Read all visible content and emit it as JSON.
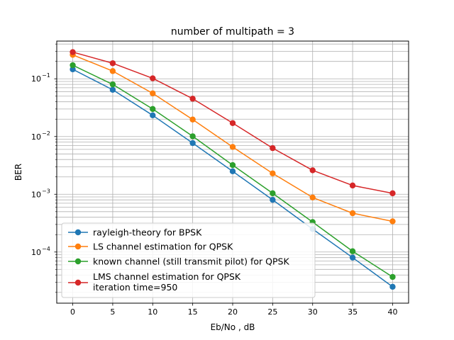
{
  "chart_data": {
    "type": "line",
    "title": "number of multipath = 3",
    "xlabel": "Eb/No , dB",
    "ylabel": "BER",
    "xlim": [
      -2,
      42
    ],
    "ylim": [
      1.3e-05,
      0.45
    ],
    "yscale": "log",
    "grid": true,
    "legend_position": "lower-left",
    "x_ticks": [
      0,
      5,
      10,
      15,
      20,
      25,
      30,
      35,
      40
    ],
    "x_tick_labels": [
      "0",
      "5",
      "10",
      "15",
      "20",
      "25",
      "30",
      "35",
      "40"
    ],
    "y_ticks": [
      0.0001,
      0.001,
      0.01,
      0.1
    ],
    "y_tick_bases": [
      "10",
      "10",
      "10",
      "10"
    ],
    "y_tick_exps": [
      "−4",
      "−3",
      "−2",
      "−1"
    ],
    "x": [
      0,
      5,
      10,
      15,
      20,
      25,
      30,
      35,
      40
    ],
    "series": [
      {
        "name": "rayleigh-theory for BPSK",
        "color": "#1f77b4",
        "values": [
          0.146,
          0.0645,
          0.0233,
          0.0077,
          0.0025,
          0.0008,
          0.00025,
          8e-05,
          2.5e-05
        ]
      },
      {
        "name": "LS channel estimation for QPSK",
        "color": "#ff7f0e",
        "values": [
          0.26,
          0.136,
          0.056,
          0.0197,
          0.0066,
          0.0023,
          0.00088,
          0.00047,
          0.00034
        ]
      },
      {
        "name": "known channel (still transmit pilot) for QPSK",
        "color": "#2ca02c",
        "values": [
          0.172,
          0.08,
          0.03,
          0.0101,
          0.0032,
          0.00104,
          0.00033,
          0.000103,
          3.7e-05
        ]
      },
      {
        "name": "LMS channel estimation for QPSK",
        "name_line2": "iteration time=950",
        "color": "#d62728",
        "values": [
          0.29,
          0.186,
          0.102,
          0.0452,
          0.0171,
          0.0063,
          0.0026,
          0.00142,
          0.00104
        ]
      }
    ]
  }
}
